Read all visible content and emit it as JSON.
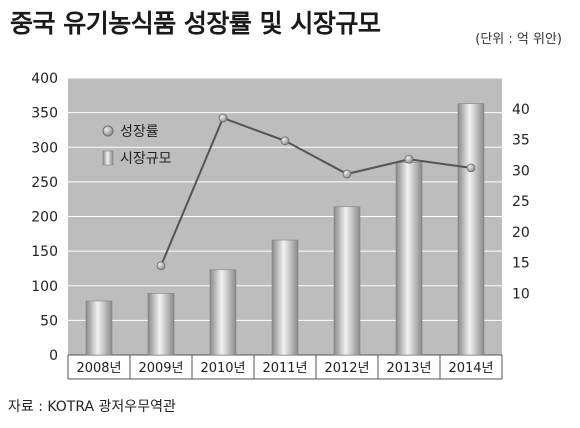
{
  "header": {
    "title": "중국 유기농식품 성장률 및 시장규모",
    "unit": "(단위 : 억 위안)"
  },
  "footer": {
    "source": "자료 : KOTRA 광저우무역관"
  },
  "chart_data": {
    "type": "bar",
    "categories": [
      "2008년",
      "2009년",
      "2010년",
      "2011년",
      "2012년",
      "2013년",
      "2014년"
    ],
    "series": [
      {
        "name": "시장규모",
        "type": "bar",
        "axis": "left",
        "values": [
          78,
          89,
          123,
          166,
          214,
          278,
          363
        ]
      },
      {
        "name": "성장률",
        "type": "line",
        "axis": "right",
        "values": [
          null,
          14.5,
          38.5,
          34.8,
          29.4,
          31.8,
          30.4
        ]
      }
    ],
    "title": "중국 유기농식품 성장률 및 시장규모",
    "xlabel": "",
    "ylabel": "",
    "ylim": [
      0,
      400
    ],
    "yticks": [
      0,
      50,
      100,
      150,
      200,
      250,
      300,
      350,
      400
    ],
    "y2lim": [
      0,
      45
    ],
    "y2ticks": [
      10,
      15,
      20,
      25,
      30,
      35,
      40
    ],
    "grid": true,
    "legend": "top-left",
    "colors": {
      "plot_background": "#bdbdbd",
      "bar_light": "#f2f2f2",
      "bar_dark": "#8a8a8a",
      "line": "#555555",
      "marker": "#9a9a9a",
      "grid": "#ffffff"
    }
  }
}
